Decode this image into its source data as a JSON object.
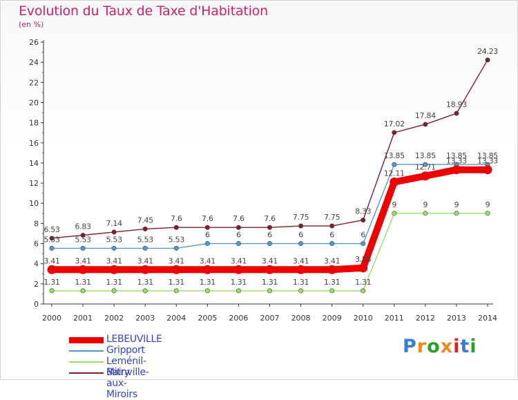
{
  "title": "Evolution du Taux de Taxe d'Habitation",
  "unit_label": "(en %)",
  "brand": {
    "text": "Proxiti",
    "colors": [
      "#3a7bd5",
      "#f08a1c",
      "#2aa02a",
      "#f08a1c",
      "#d62828",
      "#3a7bd5",
      "#2aa02a"
    ]
  },
  "chart_data": {
    "type": "line",
    "title": "Evolution du Taux de Taxe d'Habitation",
    "ylabel": "(en %)",
    "xlabel": "",
    "x": [
      "2000",
      "2001",
      "2002",
      "2003",
      "2004",
      "2005",
      "2006",
      "2007",
      "2008",
      "2009",
      "2010",
      "2011",
      "2012",
      "2013",
      "2014"
    ],
    "ylim": [
      0,
      26
    ],
    "yticks": [
      "0",
      "2",
      "4",
      "6",
      "8",
      "10",
      "12",
      "14",
      "16",
      "18",
      "20",
      "22",
      "24",
      "26"
    ],
    "grid": false,
    "legend_position": "bottom-left",
    "series": [
      {
        "name": "Bainville-aux-Miroirs",
        "color": "#7a1f2b",
        "values": [
          6.53,
          6.83,
          7.14,
          7.45,
          7.6,
          7.6,
          7.6,
          7.6,
          7.75,
          7.75,
          8.33,
          17.02,
          17.84,
          18.93,
          24.23
        ],
        "labels": [
          "6.53",
          "6.83",
          "7.14",
          "7.45",
          "7.6",
          "7.6",
          "7.6",
          "7.6",
          "7.75",
          "7.75",
          "8.33",
          "17.02",
          "17.84",
          "18.93",
          "24.23"
        ]
      },
      {
        "name": "Gripport",
        "color": "#5599cc",
        "values": [
          5.53,
          5.53,
          5.53,
          5.53,
          5.53,
          6,
          6,
          6,
          6,
          6,
          6,
          13.85,
          13.85,
          13.85,
          13.85
        ],
        "labels": [
          "5.53",
          "5.53",
          "5.53",
          "5.53",
          "5.53",
          "6",
          "6",
          "6",
          "6",
          "6",
          "6",
          "13.85",
          "13.85",
          "13.85",
          "13.85"
        ]
      },
      {
        "name": "Leménil-Mitry",
        "color": "#99dd66",
        "values": [
          1.31,
          1.31,
          1.31,
          1.31,
          1.31,
          1.31,
          1.31,
          1.31,
          1.31,
          1.31,
          1.31,
          9,
          9,
          9,
          9
        ],
        "labels": [
          "1.31",
          "1.31",
          "1.31",
          "1.31",
          "1.31",
          "1.31",
          "1.31",
          "1.31",
          "1.31",
          "1.31",
          "1.31",
          "9",
          "9",
          "9",
          "9"
        ]
      },
      {
        "name": "LEBEUVILLE",
        "color": "#ee0000",
        "values": [
          3.41,
          3.41,
          3.41,
          3.41,
          3.41,
          3.41,
          3.41,
          3.41,
          3.41,
          3.41,
          3.58,
          12.11,
          12.71,
          13.33,
          13.33
        ],
        "labels": [
          "3.41",
          "3.41",
          "3.41",
          "3.41",
          "3.41",
          "3.41",
          "3.41",
          "3.41",
          "3.41",
          "3.41",
          "3.58",
          "12.11",
          "12.71",
          "13.33",
          "13.33"
        ]
      }
    ],
    "legend": [
      "LEBEUVILLE",
      "Gripport",
      "Leménil-Mitry",
      "Bainville-aux-Miroirs"
    ]
  }
}
